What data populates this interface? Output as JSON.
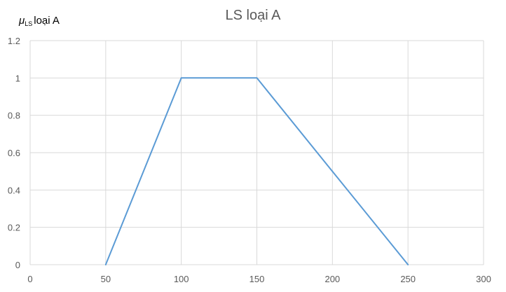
{
  "chart_data": {
    "type": "line",
    "title": "LS loại A",
    "ylabel_symbol": "μ",
    "ylabel_subscript": "LS",
    "ylabel_text": "loại A",
    "xlabel": "",
    "x": [
      50,
      100,
      150,
      200,
      250
    ],
    "series": [
      {
        "values": [
          0,
          1,
          1,
          0.5,
          0
        ]
      }
    ],
    "xlim": [
      0,
      300
    ],
    "ylim": [
      0,
      1.2
    ],
    "x_ticks": [
      "0",
      "50",
      "100",
      "150",
      "200",
      "250",
      "300"
    ],
    "y_ticks": [
      "0",
      "0.2",
      "0.4",
      "0.6",
      "0.8",
      "1",
      "1.2"
    ],
    "grid": true,
    "line_color": "#5B9BD5",
    "grid_color": "#D9D9D9"
  }
}
